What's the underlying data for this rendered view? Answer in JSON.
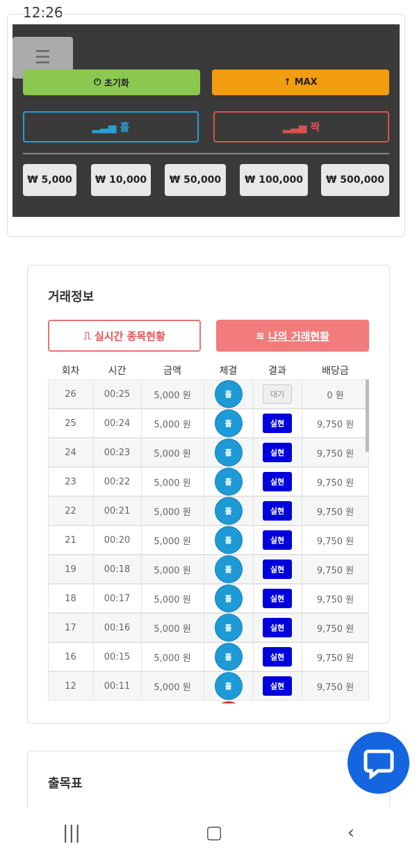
{
  "status": {
    "time": "12:26"
  },
  "controls": {
    "reset": "초기화",
    "max": "MAX",
    "odd": "홀",
    "even": "짝",
    "amounts": [
      "₩ 5,000",
      "₩ 10,000",
      "₩ 50,000",
      "₩ 100,000",
      "₩ 500,000"
    ]
  },
  "trade": {
    "title": "거래정보",
    "tabs": [
      "실시간 종목현황",
      "나의 거래현황"
    ],
    "headers": [
      "회차",
      "시간",
      "금액",
      "체결",
      "결과",
      "배당금"
    ],
    "rows": [
      [
        "26",
        "00:25",
        "5,000 원",
        "홀",
        "대기",
        "0 원"
      ],
      [
        "25",
        "00:24",
        "5,000 원",
        "홀",
        "실현",
        "9,750 원"
      ],
      [
        "24",
        "00:23",
        "5,000 원",
        "홀",
        "실현",
        "9,750 원"
      ],
      [
        "23",
        "00:22",
        "5,000 원",
        "홀",
        "실현",
        "9,750 원"
      ],
      [
        "22",
        "00:21",
        "5,000 원",
        "홀",
        "실현",
        "9,750 원"
      ],
      [
        "21",
        "00:20",
        "5,000 원",
        "홀",
        "실현",
        "9,750 원"
      ],
      [
        "19",
        "00:18",
        "5,000 원",
        "홀",
        "실현",
        "9,750 원"
      ],
      [
        "18",
        "00:17",
        "5,000 원",
        "홀",
        "실현",
        "9,750 원"
      ],
      [
        "17",
        "00:16",
        "5,000 원",
        "홀",
        "실현",
        "9,750 원"
      ],
      [
        "16",
        "00:15",
        "5,000 원",
        "홀",
        "실현",
        "9,750 원"
      ],
      [
        "12",
        "00:11",
        "5,000 원",
        "홀",
        "실현",
        "9,750 원"
      ]
    ]
  },
  "history": {
    "title": "출목표"
  }
}
